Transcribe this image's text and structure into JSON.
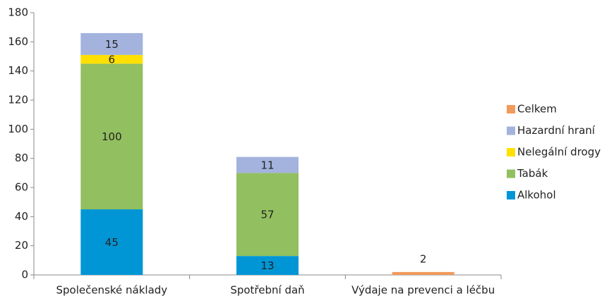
{
  "chart_data": {
    "type": "stacked_bar",
    "categories": [
      "Společenské náklady",
      "Spotřební daň",
      "Výdaje na prevenci a léčbu"
    ],
    "series": [
      {
        "name": "Alkohol",
        "color": "#0096d6",
        "values": [
          45,
          13,
          null
        ]
      },
      {
        "name": "Tabák",
        "color": "#92bf5f",
        "values": [
          100,
          57,
          null
        ]
      },
      {
        "name": "Nelegální drogy",
        "color": "#ffe000",
        "values": [
          6,
          null,
          null
        ]
      },
      {
        "name": "Hazardní hraní",
        "color": "#a3b3de",
        "values": [
          15,
          11,
          null
        ]
      },
      {
        "name": "Celkem",
        "color": "#f29a5b",
        "values": [
          null,
          null,
          2
        ]
      }
    ],
    "ylim": [
      0,
      180
    ],
    "yticks": [
      0,
      20,
      40,
      60,
      80,
      100,
      120,
      140,
      160,
      180
    ],
    "legend": "right",
    "grid": false
  }
}
